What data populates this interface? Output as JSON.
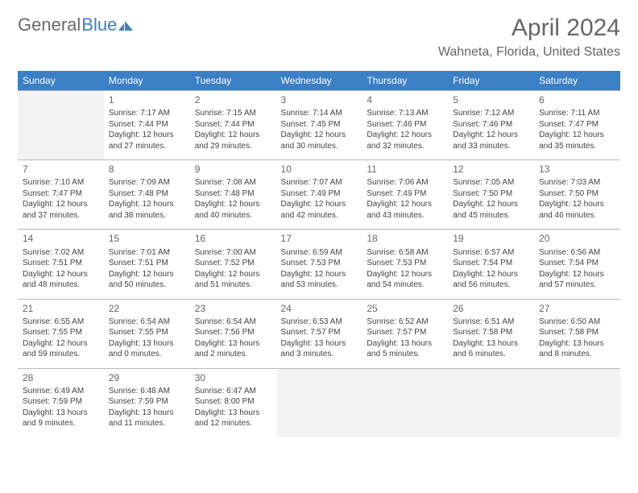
{
  "logo": {
    "text1": "General",
    "text2": "Blue"
  },
  "title": "April 2024",
  "location": "Wahneta, Florida, United States",
  "colors": {
    "header_bg": "#3b7fc4",
    "header_text": "#ffffff",
    "grid_border": "#b8b8b8",
    "empty_bg": "#f3f3f3",
    "logo_gray": "#6a6a6a",
    "logo_blue": "#3b7fc4",
    "title_color": "#666666",
    "body_text": "#444444",
    "page_bg": "#ffffff"
  },
  "typography": {
    "title_fontsize": 30,
    "location_fontsize": 16,
    "dayheader_fontsize": 12,
    "daynum_fontsize": 12,
    "detail_fontsize": 10
  },
  "week_headers": [
    "Sunday",
    "Monday",
    "Tuesday",
    "Wednesday",
    "Thursday",
    "Friday",
    "Saturday"
  ],
  "days": [
    {
      "num": 1,
      "sunrise": "7:17 AM",
      "sunset": "7:44 PM",
      "daylight": "12 hours and 27 minutes."
    },
    {
      "num": 2,
      "sunrise": "7:15 AM",
      "sunset": "7:44 PM",
      "daylight": "12 hours and 29 minutes."
    },
    {
      "num": 3,
      "sunrise": "7:14 AM",
      "sunset": "7:45 PM",
      "daylight": "12 hours and 30 minutes."
    },
    {
      "num": 4,
      "sunrise": "7:13 AM",
      "sunset": "7:46 PM",
      "daylight": "12 hours and 32 minutes."
    },
    {
      "num": 5,
      "sunrise": "7:12 AM",
      "sunset": "7:46 PM",
      "daylight": "12 hours and 33 minutes."
    },
    {
      "num": 6,
      "sunrise": "7:11 AM",
      "sunset": "7:47 PM",
      "daylight": "12 hours and 35 minutes."
    },
    {
      "num": 7,
      "sunrise": "7:10 AM",
      "sunset": "7:47 PM",
      "daylight": "12 hours and 37 minutes."
    },
    {
      "num": 8,
      "sunrise": "7:09 AM",
      "sunset": "7:48 PM",
      "daylight": "12 hours and 38 minutes."
    },
    {
      "num": 9,
      "sunrise": "7:08 AM",
      "sunset": "7:48 PM",
      "daylight": "12 hours and 40 minutes."
    },
    {
      "num": 10,
      "sunrise": "7:07 AM",
      "sunset": "7:49 PM",
      "daylight": "12 hours and 42 minutes."
    },
    {
      "num": 11,
      "sunrise": "7:06 AM",
      "sunset": "7:49 PM",
      "daylight": "12 hours and 43 minutes."
    },
    {
      "num": 12,
      "sunrise": "7:05 AM",
      "sunset": "7:50 PM",
      "daylight": "12 hours and 45 minutes."
    },
    {
      "num": 13,
      "sunrise": "7:03 AM",
      "sunset": "7:50 PM",
      "daylight": "12 hours and 46 minutes."
    },
    {
      "num": 14,
      "sunrise": "7:02 AM",
      "sunset": "7:51 PM",
      "daylight": "12 hours and 48 minutes."
    },
    {
      "num": 15,
      "sunrise": "7:01 AM",
      "sunset": "7:51 PM",
      "daylight": "12 hours and 50 minutes."
    },
    {
      "num": 16,
      "sunrise": "7:00 AM",
      "sunset": "7:52 PM",
      "daylight": "12 hours and 51 minutes."
    },
    {
      "num": 17,
      "sunrise": "6:59 AM",
      "sunset": "7:53 PM",
      "daylight": "12 hours and 53 minutes."
    },
    {
      "num": 18,
      "sunrise": "6:58 AM",
      "sunset": "7:53 PM",
      "daylight": "12 hours and 54 minutes."
    },
    {
      "num": 19,
      "sunrise": "6:57 AM",
      "sunset": "7:54 PM",
      "daylight": "12 hours and 56 minutes."
    },
    {
      "num": 20,
      "sunrise": "6:56 AM",
      "sunset": "7:54 PM",
      "daylight": "12 hours and 57 minutes."
    },
    {
      "num": 21,
      "sunrise": "6:55 AM",
      "sunset": "7:55 PM",
      "daylight": "12 hours and 59 minutes."
    },
    {
      "num": 22,
      "sunrise": "6:54 AM",
      "sunset": "7:55 PM",
      "daylight": "13 hours and 0 minutes."
    },
    {
      "num": 23,
      "sunrise": "6:54 AM",
      "sunset": "7:56 PM",
      "daylight": "13 hours and 2 minutes."
    },
    {
      "num": 24,
      "sunrise": "6:53 AM",
      "sunset": "7:57 PM",
      "daylight": "13 hours and 3 minutes."
    },
    {
      "num": 25,
      "sunrise": "6:52 AM",
      "sunset": "7:57 PM",
      "daylight": "13 hours and 5 minutes."
    },
    {
      "num": 26,
      "sunrise": "6:51 AM",
      "sunset": "7:58 PM",
      "daylight": "13 hours and 6 minutes."
    },
    {
      "num": 27,
      "sunrise": "6:50 AM",
      "sunset": "7:58 PM",
      "daylight": "13 hours and 8 minutes."
    },
    {
      "num": 28,
      "sunrise": "6:49 AM",
      "sunset": "7:59 PM",
      "daylight": "13 hours and 9 minutes."
    },
    {
      "num": 29,
      "sunrise": "6:48 AM",
      "sunset": "7:59 PM",
      "daylight": "13 hours and 11 minutes."
    },
    {
      "num": 30,
      "sunrise": "6:47 AM",
      "sunset": "8:00 PM",
      "daylight": "13 hours and 12 minutes."
    }
  ],
  "layout": {
    "first_weekday_offset": 1,
    "total_cells": 35
  },
  "labels": {
    "sunrise_prefix": "Sunrise: ",
    "sunset_prefix": "Sunset: ",
    "daylight_prefix": "Daylight: "
  }
}
